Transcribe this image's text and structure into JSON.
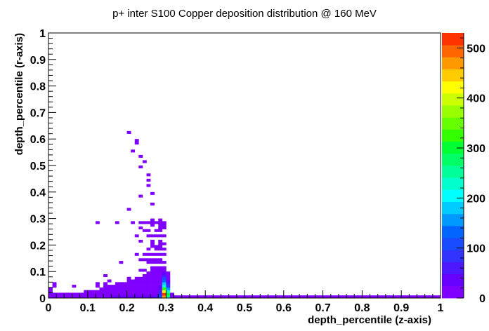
{
  "chart_data": {
    "type": "heatmap",
    "title": "p+ inter S100 Copper deposition distribution @ 160 MeV",
    "xlabel": "depth_percentile (z-axis)",
    "ylabel": "depth_percentile (r-axis)",
    "xlim": [
      0,
      1
    ],
    "ylim": [
      0,
      1
    ],
    "x_ticks": [
      "0",
      "0.1",
      "0.2",
      "0.3",
      "0.4",
      "0.5",
      "0.6",
      "0.7",
      "0.8",
      "0.9",
      "1"
    ],
    "y_ticks": [
      "0",
      "0.1",
      "0.2",
      "0.3",
      "0.4",
      "0.5",
      "0.6",
      "0.7",
      "0.8",
      "0.9",
      "1"
    ],
    "grid": false,
    "bin_width_x": 0.01,
    "bin_height_y": 0.01,
    "colorbar": {
      "zlim": [
        0,
        530
      ],
      "ticks": [
        "0",
        "100",
        "200",
        "300",
        "400",
        "500"
      ],
      "colors": [
        "#7f00ff",
        "#6600ff",
        "#4c19ff",
        "#3333ff",
        "#194cff",
        "#0066ff",
        "#0099ff",
        "#00ccff",
        "#00ffff",
        "#00ffcc",
        "#00ff99",
        "#00ff66",
        "#00ff33",
        "#33ff00",
        "#66ff00",
        "#99ff00",
        "#ccff00",
        "#ffff00",
        "#ffcc00",
        "#ff9900",
        "#ff6600",
        "#ff3300"
      ]
    },
    "bins": [
      [
        0.0,
        0.0,
        12
      ],
      [
        0.01,
        0.0,
        10
      ],
      [
        0.02,
        0.0,
        8
      ],
      [
        0.03,
        0.0,
        10
      ],
      [
        0.04,
        0.0,
        8
      ],
      [
        0.05,
        0.0,
        8
      ],
      [
        0.06,
        0.0,
        10
      ],
      [
        0.07,
        0.0,
        10
      ],
      [
        0.08,
        0.0,
        12
      ],
      [
        0.09,
        0.0,
        14
      ],
      [
        0.1,
        0.0,
        14
      ],
      [
        0.11,
        0.0,
        16
      ],
      [
        0.12,
        0.0,
        18
      ],
      [
        0.13,
        0.0,
        20
      ],
      [
        0.14,
        0.0,
        22
      ],
      [
        0.15,
        0.0,
        24
      ],
      [
        0.16,
        0.0,
        26
      ],
      [
        0.17,
        0.0,
        28
      ],
      [
        0.18,
        0.0,
        30
      ],
      [
        0.19,
        0.0,
        34
      ],
      [
        0.2,
        0.0,
        36
      ],
      [
        0.21,
        0.0,
        38
      ],
      [
        0.22,
        0.0,
        40
      ],
      [
        0.23,
        0.0,
        42
      ],
      [
        0.24,
        0.0,
        44
      ],
      [
        0.25,
        0.0,
        46
      ],
      [
        0.26,
        0.0,
        48
      ],
      [
        0.27,
        0.0,
        50
      ],
      [
        0.28,
        0.0,
        120
      ],
      [
        0.29,
        0.0,
        480
      ],
      [
        0.3,
        0.0,
        250
      ],
      [
        0.31,
        0.0,
        20
      ],
      [
        0.32,
        0.0,
        10
      ],
      [
        0.33,
        0.0,
        5
      ],
      [
        0.34,
        0.0,
        5
      ],
      [
        0.35,
        0.0,
        5
      ],
      [
        0.36,
        0.0,
        5
      ],
      [
        0.37,
        0.0,
        5
      ],
      [
        0.38,
        0.0,
        5
      ],
      [
        0.39,
        0.0,
        5
      ],
      [
        0.4,
        0.0,
        5
      ],
      [
        0.41,
        0.0,
        5
      ],
      [
        0.42,
        0.0,
        5
      ],
      [
        0.43,
        0.0,
        5
      ],
      [
        0.44,
        0.0,
        5
      ],
      [
        0.45,
        0.0,
        5
      ],
      [
        0.46,
        0.0,
        5
      ],
      [
        0.47,
        0.0,
        5
      ],
      [
        0.48,
        0.0,
        5
      ],
      [
        0.49,
        0.0,
        5
      ],
      [
        0.5,
        0.0,
        5
      ],
      [
        0.51,
        0.0,
        5
      ],
      [
        0.52,
        0.0,
        5
      ],
      [
        0.53,
        0.0,
        5
      ],
      [
        0.54,
        0.0,
        5
      ],
      [
        0.55,
        0.0,
        5
      ],
      [
        0.56,
        0.0,
        5
      ],
      [
        0.57,
        0.0,
        5
      ],
      [
        0.58,
        0.0,
        5
      ],
      [
        0.59,
        0.0,
        5
      ],
      [
        0.6,
        0.0,
        5
      ],
      [
        0.61,
        0.0,
        5
      ],
      [
        0.62,
        0.0,
        5
      ],
      [
        0.63,
        0.0,
        5
      ],
      [
        0.64,
        0.0,
        5
      ],
      [
        0.65,
        0.0,
        5
      ],
      [
        0.66,
        0.0,
        5
      ],
      [
        0.67,
        0.0,
        5
      ],
      [
        0.68,
        0.0,
        5
      ],
      [
        0.69,
        0.0,
        5
      ],
      [
        0.7,
        0.0,
        5
      ],
      [
        0.71,
        0.0,
        5
      ],
      [
        0.72,
        0.0,
        5
      ],
      [
        0.73,
        0.0,
        5
      ],
      [
        0.74,
        0.0,
        5
      ],
      [
        0.75,
        0.0,
        5
      ],
      [
        0.76,
        0.0,
        5
      ],
      [
        0.77,
        0.0,
        5
      ],
      [
        0.78,
        0.0,
        5
      ],
      [
        0.79,
        0.0,
        5
      ],
      [
        0.8,
        0.0,
        5
      ],
      [
        0.81,
        0.0,
        5
      ],
      [
        0.82,
        0.0,
        5
      ],
      [
        0.83,
        0.0,
        5
      ],
      [
        0.84,
        0.0,
        5
      ],
      [
        0.85,
        0.0,
        5
      ],
      [
        0.86,
        0.0,
        5
      ],
      [
        0.87,
        0.0,
        5
      ],
      [
        0.88,
        0.0,
        5
      ],
      [
        0.89,
        0.0,
        5
      ],
      [
        0.9,
        0.0,
        5
      ],
      [
        0.91,
        0.0,
        5
      ],
      [
        0.92,
        0.0,
        5
      ],
      [
        0.93,
        0.0,
        5
      ],
      [
        0.94,
        0.0,
        5
      ],
      [
        0.95,
        0.0,
        5
      ],
      [
        0.96,
        0.0,
        5
      ],
      [
        0.97,
        0.0,
        5
      ],
      [
        0.98,
        0.0,
        5
      ],
      [
        0.99,
        0.0,
        5
      ],
      [
        0.0,
        0.01,
        5
      ],
      [
        0.01,
        0.01,
        5
      ],
      [
        0.02,
        0.01,
        5
      ],
      [
        0.03,
        0.01,
        5
      ],
      [
        0.04,
        0.01,
        5
      ],
      [
        0.05,
        0.01,
        5
      ],
      [
        0.06,
        0.01,
        5
      ],
      [
        0.07,
        0.01,
        5
      ],
      [
        0.08,
        0.01,
        5
      ],
      [
        0.09,
        0.01,
        5
      ],
      [
        0.1,
        0.01,
        5
      ],
      [
        0.11,
        0.01,
        5
      ],
      [
        0.12,
        0.01,
        5
      ],
      [
        0.13,
        0.01,
        5
      ],
      [
        0.14,
        0.01,
        5
      ],
      [
        0.15,
        0.01,
        5
      ],
      [
        0.16,
        0.01,
        5
      ],
      [
        0.17,
        0.01,
        5
      ],
      [
        0.18,
        0.01,
        5
      ],
      [
        0.19,
        0.01,
        5
      ],
      [
        0.2,
        0.01,
        5
      ],
      [
        0.21,
        0.01,
        5
      ],
      [
        0.22,
        0.01,
        5
      ],
      [
        0.23,
        0.01,
        5
      ],
      [
        0.24,
        0.01,
        5
      ],
      [
        0.25,
        0.01,
        5
      ],
      [
        0.26,
        0.01,
        5
      ],
      [
        0.27,
        0.01,
        5
      ],
      [
        0.28,
        0.01,
        90
      ],
      [
        0.29,
        0.01,
        530
      ],
      [
        0.3,
        0.01,
        300
      ],
      [
        0.31,
        0.01,
        10
      ],
      [
        0.0,
        0.02,
        5
      ],
      [
        0.09,
        0.02,
        5
      ],
      [
        0.1,
        0.02,
        5
      ],
      [
        0.11,
        0.02,
        5
      ],
      [
        0.12,
        0.02,
        5
      ],
      [
        0.13,
        0.02,
        5
      ],
      [
        0.14,
        0.02,
        5
      ],
      [
        0.15,
        0.02,
        5
      ],
      [
        0.16,
        0.02,
        5
      ],
      [
        0.17,
        0.02,
        5
      ],
      [
        0.18,
        0.02,
        5
      ],
      [
        0.19,
        0.02,
        5
      ],
      [
        0.2,
        0.02,
        5
      ],
      [
        0.21,
        0.02,
        5
      ],
      [
        0.22,
        0.02,
        5
      ],
      [
        0.23,
        0.02,
        5
      ],
      [
        0.24,
        0.02,
        5
      ],
      [
        0.25,
        0.02,
        5
      ],
      [
        0.26,
        0.02,
        5
      ],
      [
        0.27,
        0.02,
        5
      ],
      [
        0.28,
        0.02,
        60
      ],
      [
        0.29,
        0.02,
        430
      ],
      [
        0.3,
        0.02,
        240
      ],
      [
        0.0,
        0.03,
        5
      ],
      [
        0.13,
        0.03,
        5
      ],
      [
        0.14,
        0.03,
        5
      ],
      [
        0.15,
        0.03,
        5
      ],
      [
        0.16,
        0.03,
        5
      ],
      [
        0.17,
        0.03,
        5
      ],
      [
        0.18,
        0.03,
        5
      ],
      [
        0.19,
        0.03,
        5
      ],
      [
        0.2,
        0.03,
        5
      ],
      [
        0.21,
        0.03,
        5
      ],
      [
        0.22,
        0.03,
        5
      ],
      [
        0.23,
        0.03,
        5
      ],
      [
        0.24,
        0.03,
        5
      ],
      [
        0.25,
        0.03,
        5
      ],
      [
        0.26,
        0.03,
        5
      ],
      [
        0.27,
        0.03,
        5
      ],
      [
        0.28,
        0.03,
        40
      ],
      [
        0.29,
        0.03,
        330
      ],
      [
        0.3,
        0.03,
        150
      ],
      [
        0.01,
        0.04,
        5
      ],
      [
        0.06,
        0.04,
        5
      ],
      [
        0.12,
        0.04,
        5
      ],
      [
        0.14,
        0.04,
        5
      ],
      [
        0.15,
        0.04,
        5
      ],
      [
        0.16,
        0.04,
        5
      ],
      [
        0.17,
        0.04,
        5
      ],
      [
        0.18,
        0.04,
        5
      ],
      [
        0.19,
        0.04,
        5
      ],
      [
        0.2,
        0.04,
        5
      ],
      [
        0.21,
        0.04,
        5
      ],
      [
        0.22,
        0.04,
        5
      ],
      [
        0.23,
        0.04,
        5
      ],
      [
        0.24,
        0.04,
        5
      ],
      [
        0.25,
        0.04,
        5
      ],
      [
        0.26,
        0.04,
        5
      ],
      [
        0.27,
        0.04,
        5
      ],
      [
        0.28,
        0.04,
        30
      ],
      [
        0.29,
        0.04,
        230
      ],
      [
        0.3,
        0.04,
        80
      ],
      [
        0.01,
        0.05,
        5
      ],
      [
        0.12,
        0.05,
        5
      ],
      [
        0.14,
        0.05,
        5
      ],
      [
        0.17,
        0.05,
        5
      ],
      [
        0.18,
        0.05,
        5
      ],
      [
        0.19,
        0.05,
        5
      ],
      [
        0.2,
        0.05,
        5
      ],
      [
        0.21,
        0.05,
        5
      ],
      [
        0.22,
        0.05,
        5
      ],
      [
        0.23,
        0.05,
        5
      ],
      [
        0.24,
        0.05,
        5
      ],
      [
        0.25,
        0.05,
        5
      ],
      [
        0.26,
        0.05,
        5
      ],
      [
        0.27,
        0.05,
        5
      ],
      [
        0.28,
        0.05,
        20
      ],
      [
        0.29,
        0.05,
        170
      ],
      [
        0.3,
        0.05,
        50
      ],
      [
        0.15,
        0.06,
        5
      ],
      [
        0.2,
        0.06,
        5
      ],
      [
        0.21,
        0.06,
        5
      ],
      [
        0.22,
        0.06,
        5
      ],
      [
        0.23,
        0.06,
        5
      ],
      [
        0.24,
        0.06,
        5
      ],
      [
        0.25,
        0.06,
        5
      ],
      [
        0.26,
        0.06,
        5
      ],
      [
        0.27,
        0.06,
        5
      ],
      [
        0.28,
        0.06,
        15
      ],
      [
        0.29,
        0.06,
        130
      ],
      [
        0.3,
        0.06,
        30
      ],
      [
        0.2,
        0.07,
        5
      ],
      [
        0.22,
        0.07,
        5
      ],
      [
        0.23,
        0.07,
        5
      ],
      [
        0.24,
        0.07,
        5
      ],
      [
        0.25,
        0.07,
        5
      ],
      [
        0.26,
        0.07,
        5
      ],
      [
        0.27,
        0.07,
        5
      ],
      [
        0.28,
        0.07,
        10
      ],
      [
        0.29,
        0.07,
        100
      ],
      [
        0.3,
        0.07,
        20
      ],
      [
        0.14,
        0.08,
        5
      ],
      [
        0.24,
        0.08,
        5
      ],
      [
        0.25,
        0.08,
        5
      ],
      [
        0.26,
        0.08,
        5
      ],
      [
        0.27,
        0.08,
        5
      ],
      [
        0.28,
        0.08,
        10
      ],
      [
        0.29,
        0.08,
        70
      ],
      [
        0.3,
        0.08,
        15
      ],
      [
        0.25,
        0.09,
        5
      ],
      [
        0.26,
        0.09,
        5
      ],
      [
        0.27,
        0.09,
        5
      ],
      [
        0.28,
        0.09,
        5
      ],
      [
        0.29,
        0.09,
        40
      ],
      [
        0.3,
        0.09,
        10
      ],
      [
        0.23,
        0.1,
        5
      ],
      [
        0.24,
        0.1,
        5
      ],
      [
        0.26,
        0.1,
        5
      ],
      [
        0.27,
        0.1,
        5
      ],
      [
        0.28,
        0.1,
        5
      ],
      [
        0.29,
        0.1,
        20
      ],
      [
        0.26,
        0.11,
        5
      ],
      [
        0.27,
        0.11,
        5
      ],
      [
        0.28,
        0.11,
        5
      ],
      [
        0.29,
        0.11,
        10
      ],
      [
        0.18,
        0.13,
        5
      ],
      [
        0.25,
        0.13,
        5
      ],
      [
        0.26,
        0.13,
        5
      ],
      [
        0.27,
        0.13,
        5
      ],
      [
        0.28,
        0.13,
        5
      ],
      [
        0.29,
        0.13,
        5
      ],
      [
        0.23,
        0.14,
        5
      ],
      [
        0.24,
        0.14,
        5
      ],
      [
        0.25,
        0.14,
        5
      ],
      [
        0.26,
        0.14,
        5
      ],
      [
        0.27,
        0.14,
        5
      ],
      [
        0.28,
        0.14,
        5
      ],
      [
        0.22,
        0.16,
        5
      ],
      [
        0.24,
        0.16,
        5
      ],
      [
        0.25,
        0.16,
        5
      ],
      [
        0.26,
        0.16,
        5
      ],
      [
        0.27,
        0.16,
        5
      ],
      [
        0.28,
        0.16,
        5
      ],
      [
        0.29,
        0.16,
        5
      ],
      [
        0.25,
        0.18,
        5
      ],
      [
        0.27,
        0.18,
        5
      ],
      [
        0.28,
        0.18,
        5
      ],
      [
        0.29,
        0.18,
        5
      ],
      [
        0.26,
        0.19,
        5
      ],
      [
        0.27,
        0.19,
        5
      ],
      [
        0.28,
        0.19,
        5
      ],
      [
        0.26,
        0.2,
        5
      ],
      [
        0.28,
        0.2,
        5
      ],
      [
        0.29,
        0.2,
        5
      ],
      [
        0.23,
        0.21,
        5
      ],
      [
        0.26,
        0.21,
        5
      ],
      [
        0.28,
        0.21,
        5
      ],
      [
        0.22,
        0.23,
        5
      ],
      [
        0.25,
        0.23,
        5
      ],
      [
        0.26,
        0.23,
        5
      ],
      [
        0.27,
        0.23,
        5
      ],
      [
        0.28,
        0.23,
        5
      ],
      [
        0.29,
        0.23,
        5
      ],
      [
        0.24,
        0.25,
        5
      ],
      [
        0.25,
        0.25,
        5
      ],
      [
        0.27,
        0.25,
        5
      ],
      [
        0.28,
        0.25,
        5
      ],
      [
        0.23,
        0.26,
        5
      ],
      [
        0.28,
        0.26,
        5
      ],
      [
        0.29,
        0.26,
        5
      ],
      [
        0.26,
        0.27,
        5
      ],
      [
        0.28,
        0.27,
        5
      ],
      [
        0.29,
        0.27,
        5
      ],
      [
        0.12,
        0.28,
        5
      ],
      [
        0.17,
        0.28,
        5
      ],
      [
        0.21,
        0.28,
        5
      ],
      [
        0.23,
        0.28,
        5
      ],
      [
        0.24,
        0.28,
        5
      ],
      [
        0.25,
        0.28,
        5
      ],
      [
        0.26,
        0.28,
        5
      ],
      [
        0.27,
        0.28,
        5
      ],
      [
        0.28,
        0.28,
        5
      ],
      [
        0.29,
        0.28,
        5
      ],
      [
        0.26,
        0.29,
        5
      ],
      [
        0.28,
        0.29,
        5
      ],
      [
        0.2,
        0.33,
        5
      ],
      [
        0.26,
        0.35,
        5
      ],
      [
        0.23,
        0.38,
        5
      ],
      [
        0.26,
        0.39,
        5
      ],
      [
        0.25,
        0.42,
        5
      ],
      [
        0.25,
        0.44,
        5
      ],
      [
        0.25,
        0.46,
        5
      ],
      [
        0.23,
        0.49,
        5
      ],
      [
        0.24,
        0.51,
        5
      ],
      [
        0.23,
        0.53,
        5
      ],
      [
        0.21,
        0.55,
        5
      ],
      [
        0.22,
        0.58,
        5
      ],
      [
        0.22,
        0.59,
        5
      ],
      [
        0.2,
        0.62,
        5
      ]
    ]
  }
}
